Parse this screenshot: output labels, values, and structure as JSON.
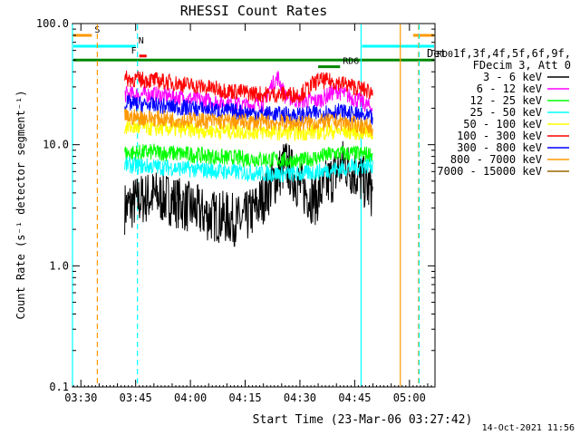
{
  "chart_data": {
    "type": "line",
    "title": "RHESSI Count Rates",
    "xlabel": "Start Time (23-Mar-06 03:27:42)",
    "ylabel": "Count Rate (s⁻¹ detector segment⁻¹)",
    "y_scale": "log",
    "ylim": [
      0.1,
      100
    ],
    "xlim": [
      "03:27:42",
      "05:07"
    ],
    "y_ticks": [
      "0.1",
      "1.0",
      "10.0",
      "100.0"
    ],
    "x_ticks": [
      "03:30",
      "03:45",
      "04:00",
      "04:15",
      "04:30",
      "04:45",
      "05:00"
    ],
    "footer": "14-Oct-2021 11:56",
    "legend_header": [
      "Det 1f,3f,4f,5f,6f,9f,",
      "FDecim 3, Att 0"
    ],
    "series": [
      {
        "name": "3 - 6 keV",
        "color": "#000000",
        "x": [
          "03:42",
          "03:46",
          "03:50",
          "03:55",
          "04:00",
          "04:05",
          "04:10",
          "04:14",
          "04:18",
          "04:22",
          "04:26",
          "04:30",
          "04:34",
          "04:38",
          "04:42",
          "04:46",
          "04:50"
        ],
        "values": [
          3.0,
          3.5,
          3.8,
          3.5,
          3.0,
          2.6,
          2.5,
          2.3,
          3.0,
          4.5,
          7.0,
          4.5,
          3.5,
          5.0,
          7.0,
          5.5,
          4.0
        ]
      },
      {
        "name": "6 - 12 keV",
        "color": "#ff00ff",
        "x": [
          "03:42",
          "03:50",
          "04:00",
          "04:10",
          "04:15",
          "04:20",
          "04:22",
          "04:24",
          "04:26",
          "04:30",
          "04:35",
          "04:40",
          "04:45",
          "04:50"
        ],
        "values": [
          26,
          26,
          24,
          22,
          21,
          22,
          30,
          36,
          25,
          23,
          23,
          28,
          24,
          20
        ]
      },
      {
        "name": "12 - 25 keV",
        "color": "#00ff00",
        "x": [
          "03:42",
          "03:50",
          "04:00",
          "04:10",
          "04:20",
          "04:30",
          "04:40",
          "04:50"
        ],
        "values": [
          8.5,
          8.7,
          8.3,
          7.8,
          7.6,
          7.3,
          8.5,
          8.3
        ]
      },
      {
        "name": "25 - 50 keV",
        "color": "#00ffff",
        "x": [
          "03:42",
          "03:50",
          "04:00",
          "04:10",
          "04:20",
          "04:30",
          "04:40",
          "04:50"
        ],
        "values": [
          6.8,
          6.6,
          6.3,
          6.0,
          5.8,
          5.7,
          6.3,
          6.8
        ]
      },
      {
        "name": "50 - 100 keV",
        "color": "#ffff00",
        "x": [
          "03:42",
          "03:50",
          "04:00",
          "04:10",
          "04:20",
          "04:30",
          "04:40",
          "04:50"
        ],
        "values": [
          14,
          13.7,
          13.3,
          13,
          12.8,
          12.6,
          13,
          12.6
        ]
      },
      {
        "name": "100 - 300 keV",
        "color": "#ff0000",
        "x": [
          "03:42",
          "03:50",
          "04:00",
          "04:10",
          "04:20",
          "04:30",
          "04:35",
          "04:40",
          "04:45",
          "04:50"
        ],
        "values": [
          35,
          34,
          31,
          28,
          26,
          26,
          34,
          33,
          30,
          27
        ]
      },
      {
        "name": "300 - 800 keV",
        "color": "#0000ff",
        "x": [
          "03:42",
          "03:50",
          "04:00",
          "04:10",
          "04:20",
          "04:30",
          "04:40",
          "04:50"
        ],
        "values": [
          22,
          21,
          20,
          19,
          18,
          17.5,
          19,
          16.5
        ]
      },
      {
        "name": "800 - 7000 keV",
        "color": "#ff9900",
        "x": [
          "03:42",
          "03:50",
          "04:00",
          "04:10",
          "04:20",
          "04:30",
          "04:40",
          "04:50"
        ],
        "values": [
          17,
          16.5,
          16,
          15.5,
          15.3,
          15,
          15.5,
          14
        ]
      },
      {
        "name": "7000 - 15000 keV",
        "color": "#996600",
        "x": [],
        "values": []
      }
    ],
    "flags": [
      {
        "label": "S",
        "color": "#ff9900",
        "x": [
          "03:27:42",
          "03:33"
        ],
        "y": 80
      },
      {
        "label": "N",
        "color": "#00ffff",
        "x": [
          "03:27:42",
          "03:45"
        ],
        "y": 65
      },
      {
        "label": "F",
        "color": "#ff0000",
        "x": [
          "03:46",
          "03:48"
        ],
        "y": 54
      },
      {
        "label": "RD0",
        "color": "#008800",
        "x": [
          "03:27:42",
          "05:07"
        ],
        "y": 50
      },
      {
        "label": "RD6",
        "color": "#008800",
        "x": [
          "04:35",
          "04:41"
        ],
        "y": 44
      },
      {
        "label": "",
        "color": "#00ffff",
        "x": [
          "04:47",
          "05:07"
        ],
        "y": 65
      },
      {
        "label": "",
        "color": "#ff9900",
        "x": [
          "05:01",
          "05:07"
        ],
        "y": 80
      }
    ],
    "vlines": [
      {
        "x": "03:27:42",
        "color": "#00ffff",
        "style": "solid"
      },
      {
        "x": "03:34:30",
        "color": "#ff9900",
        "style": "dashed"
      },
      {
        "x": "03:45:30",
        "color": "#00ffff",
        "style": "dashed"
      },
      {
        "x": "04:46:45",
        "color": "#00ffff",
        "style": "solid"
      },
      {
        "x": "04:57:30",
        "color": "#ff9900",
        "style": "solid"
      },
      {
        "x": "05:02:30",
        "color": "#ff9900",
        "style": "dashed"
      },
      {
        "x": "05:02:40",
        "color": "#00ffff",
        "style": "dashed"
      }
    ]
  }
}
